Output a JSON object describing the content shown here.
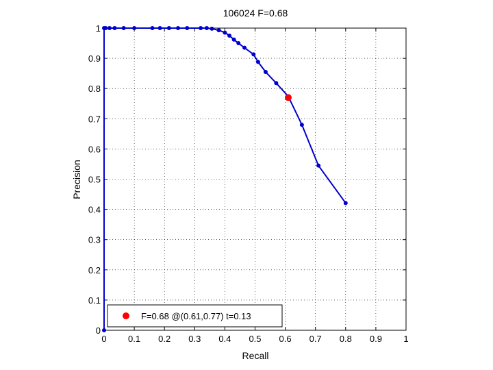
{
  "chart_data": {
    "type": "line",
    "title": "106024 F=0.68",
    "xlabel": "Recall",
    "ylabel": "Precision",
    "xlim": [
      0,
      1
    ],
    "ylim": [
      0,
      1
    ],
    "xticks": [
      0,
      0.1,
      0.2,
      0.3,
      0.4,
      0.5,
      0.6,
      0.7,
      0.8,
      0.9,
      1
    ],
    "yticks": [
      0,
      0.1,
      0.2,
      0.3,
      0.4,
      0.5,
      0.6,
      0.7,
      0.8,
      0.9,
      1
    ],
    "xtick_labels": [
      "0",
      "0.1",
      "0.2",
      "0.3",
      "0.4",
      "0.5",
      "0.6",
      "0.7",
      "0.8",
      "0.9",
      "1"
    ],
    "ytick_labels": [
      "0",
      "0.1",
      "0.2",
      "0.3",
      "0.4",
      "0.5",
      "0.6",
      "0.7",
      "0.8",
      "0.9",
      "1"
    ],
    "grid": true,
    "series": [
      {
        "color": "#0000cc",
        "marker": "dot",
        "points": [
          [
            0.0,
            0.0
          ],
          [
            0.0,
            1.0
          ],
          [
            0.005,
            1.0
          ],
          [
            0.018,
            1.0
          ],
          [
            0.035,
            1.0
          ],
          [
            0.065,
            1.0
          ],
          [
            0.1,
            1.0
          ],
          [
            0.16,
            1.0
          ],
          [
            0.185,
            1.0
          ],
          [
            0.215,
            1.0
          ],
          [
            0.245,
            1.0
          ],
          [
            0.275,
            1.0
          ],
          [
            0.32,
            1.0
          ],
          [
            0.34,
            1.0
          ],
          [
            0.357,
            0.998
          ],
          [
            0.38,
            0.993
          ],
          [
            0.4,
            0.985
          ],
          [
            0.415,
            0.975
          ],
          [
            0.43,
            0.962
          ],
          [
            0.445,
            0.95
          ],
          [
            0.465,
            0.935
          ],
          [
            0.495,
            0.913
          ],
          [
            0.51,
            0.888
          ],
          [
            0.535,
            0.855
          ],
          [
            0.57,
            0.818
          ],
          [
            0.61,
            0.774
          ],
          [
            0.655,
            0.68
          ],
          [
            0.71,
            0.545
          ],
          [
            0.8,
            0.421
          ]
        ]
      }
    ],
    "highlight": {
      "x": 0.61,
      "y": 0.77,
      "color": "#ff0000"
    },
    "legend": {
      "position": "bottom-left",
      "entries": [
        {
          "label": "F=0.68 @(0.61,0.77) t=0.13",
          "color": "#ff0000"
        }
      ]
    }
  }
}
